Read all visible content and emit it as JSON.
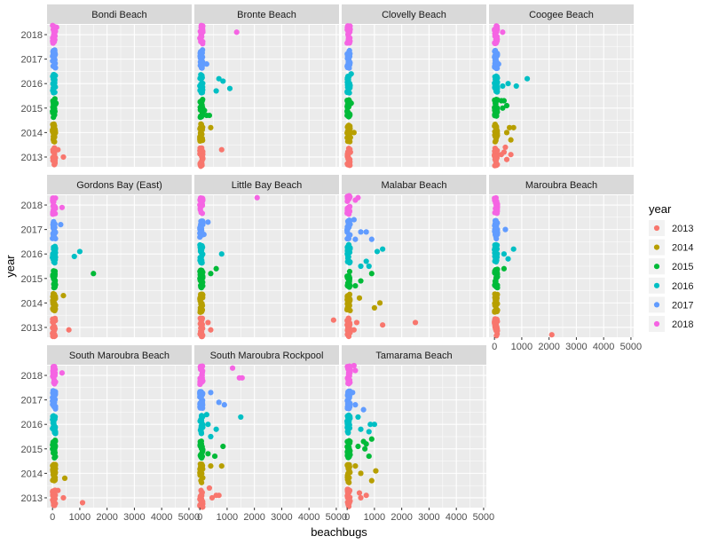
{
  "chart_data": {
    "type": "scatter",
    "xlabel": "beachbugs",
    "ylabel": "year",
    "xlim": [
      -200,
      5100
    ],
    "ylim": [
      2012.6,
      2018.4
    ],
    "x_ticks": [
      "0",
      "1000",
      "2000",
      "3000",
      "4000",
      "5000"
    ],
    "y_ticks": [
      "2013",
      "2014",
      "2015",
      "2016",
      "2017",
      "2018"
    ],
    "x_tick_values": [
      0,
      1000,
      2000,
      3000,
      4000,
      5000
    ],
    "y_tick_values": [
      2013,
      2014,
      2015,
      2016,
      2017,
      2018
    ],
    "grid": true,
    "legend": {
      "title": "year",
      "placement": "right",
      "entries": [
        {
          "label": "2013",
          "color": "#F8766D"
        },
        {
          "label": "2014",
          "color": "#B79F00"
        },
        {
          "label": "2015",
          "color": "#00BA38"
        },
        {
          "label": "2016",
          "color": "#00BFC4"
        },
        {
          "label": "2017",
          "color": "#619CFF"
        },
        {
          "label": "2018",
          "color": "#F564E3"
        }
      ]
    },
    "facets": [
      {
        "name": "Bondi Beach",
        "outliers": [
          [
            200,
            2013.3
          ],
          [
            400,
            2013.0
          ],
          [
            130,
            2015.2
          ],
          [
            150,
            2018.3
          ]
        ]
      },
      {
        "name": "Bronte Beach",
        "outliers": [
          [
            800,
            2013.3
          ],
          [
            400,
            2014.2
          ],
          [
            250,
            2014.7
          ],
          [
            350,
            2014.7
          ],
          [
            170,
            2014.9
          ],
          [
            600,
            2015.7
          ],
          [
            700,
            2016.2
          ],
          [
            850,
            2016.1
          ],
          [
            1100,
            2015.8
          ],
          [
            250,
            2016.8
          ],
          [
            1350,
            2018.1
          ]
        ]
      },
      {
        "name": "Clovelly Beach",
        "outliers": [
          [
            120,
            2013.2
          ],
          [
            120,
            2013.8
          ],
          [
            250,
            2014.0
          ],
          [
            150,
            2015.2
          ],
          [
            150,
            2016.4
          ]
        ]
      },
      {
        "name": "Coogee Beach",
        "outliers": [
          [
            250,
            2013.1
          ],
          [
            350,
            2013.2
          ],
          [
            450,
            2012.9
          ],
          [
            600,
            2013.1
          ],
          [
            400,
            2013.4
          ],
          [
            450,
            2014.0
          ],
          [
            550,
            2014.2
          ],
          [
            700,
            2014.2
          ],
          [
            600,
            2013.7
          ],
          [
            300,
            2015.0
          ],
          [
            450,
            2015.1
          ],
          [
            250,
            2015.3
          ],
          [
            350,
            2015.3
          ],
          [
            500,
            2016.0
          ],
          [
            800,
            2015.9
          ],
          [
            1200,
            2016.2
          ],
          [
            300,
            2015.9
          ],
          [
            150,
            2016.8
          ],
          [
            300,
            2018.1
          ]
        ]
      },
      {
        "name": "Gordons Bay (East)",
        "outliers": [
          [
            600,
            2012.9
          ],
          [
            400,
            2014.3
          ],
          [
            1500,
            2015.2
          ],
          [
            800,
            2015.9
          ],
          [
            1000,
            2016.1
          ],
          [
            300,
            2017.2
          ],
          [
            350,
            2017.9
          ]
        ]
      },
      {
        "name": "Little Bay Beach",
        "outliers": [
          [
            4900,
            2013.3
          ],
          [
            300,
            2013.2
          ],
          [
            400,
            2012.9
          ],
          [
            600,
            2015.4
          ],
          [
            400,
            2015.2
          ],
          [
            800,
            2016.0
          ],
          [
            300,
            2017.3
          ],
          [
            2100,
            2018.3
          ],
          [
            150,
            2016.8
          ]
        ]
      },
      {
        "name": "Malabar Beach",
        "outliers": [
          [
            2500,
            2013.2
          ],
          [
            1300,
            2013.1
          ],
          [
            350,
            2013.2
          ],
          [
            250,
            2012.9
          ],
          [
            1000,
            2013.8
          ],
          [
            1200,
            2014.0
          ],
          [
            450,
            2014.2
          ],
          [
            300,
            2014.7
          ],
          [
            500,
            2014.9
          ],
          [
            900,
            2015.2
          ],
          [
            800,
            2015.5
          ],
          [
            500,
            2015.5
          ],
          [
            700,
            2015.7
          ],
          [
            1100,
            2016.1
          ],
          [
            1300,
            2016.2
          ],
          [
            900,
            2016.6
          ],
          [
            300,
            2016.6
          ],
          [
            500,
            2016.9
          ],
          [
            700,
            2016.9
          ],
          [
            250,
            2017.4
          ],
          [
            300,
            2018.2
          ],
          [
            400,
            2018.3
          ]
        ]
      },
      {
        "name": "Maroubra Beach",
        "outliers": [
          [
            2100,
            2012.7
          ],
          [
            350,
            2015.4
          ],
          [
            350,
            2016.0
          ],
          [
            500,
            2015.8
          ],
          [
            700,
            2016.2
          ],
          [
            400,
            2017.0
          ]
        ]
      },
      {
        "name": "South Maroubra Beach",
        "outliers": [
          [
            1100,
            2012.8
          ],
          [
            400,
            2013.0
          ],
          [
            200,
            2013.3
          ],
          [
            450,
            2013.8
          ],
          [
            350,
            2018.1
          ]
        ]
      },
      {
        "name": "South Maroubra Rockpool",
        "outliers": [
          [
            600,
            2013.1
          ],
          [
            450,
            2013.0
          ],
          [
            700,
            2013.1
          ],
          [
            350,
            2013.4
          ],
          [
            800,
            2014.3
          ],
          [
            400,
            2014.3
          ],
          [
            550,
            2014.7
          ],
          [
            300,
            2014.8
          ],
          [
            850,
            2015.1
          ],
          [
            400,
            2015.5
          ],
          [
            600,
            2015.8
          ],
          [
            300,
            2016.0
          ],
          [
            250,
            2016.4
          ],
          [
            1500,
            2016.3
          ],
          [
            700,
            2016.9
          ],
          [
            900,
            2016.8
          ],
          [
            400,
            2017.3
          ],
          [
            1200,
            2018.3
          ],
          [
            1450,
            2017.9
          ],
          [
            1550,
            2017.9
          ]
        ]
      },
      {
        "name": "Tamarama Beach",
        "outliers": [
          [
            700,
            2013.1
          ],
          [
            500,
            2013.0
          ],
          [
            450,
            2013.2
          ],
          [
            900,
            2013.7
          ],
          [
            500,
            2014.0
          ],
          [
            1050,
            2014.1
          ],
          [
            300,
            2014.3
          ],
          [
            800,
            2014.7
          ],
          [
            400,
            2015.1
          ],
          [
            600,
            2015.3
          ],
          [
            700,
            2015.2
          ],
          [
            900,
            2015.4
          ],
          [
            650,
            2015.0
          ],
          [
            1000,
            2016.0
          ],
          [
            850,
            2016.0
          ],
          [
            800,
            2015.7
          ],
          [
            500,
            2015.8
          ],
          [
            400,
            2016.3
          ],
          [
            600,
            2016.6
          ],
          [
            300,
            2016.8
          ],
          [
            200,
            2017.3
          ],
          [
            300,
            2018.2
          ],
          [
            250,
            2018.4
          ]
        ]
      }
    ]
  }
}
